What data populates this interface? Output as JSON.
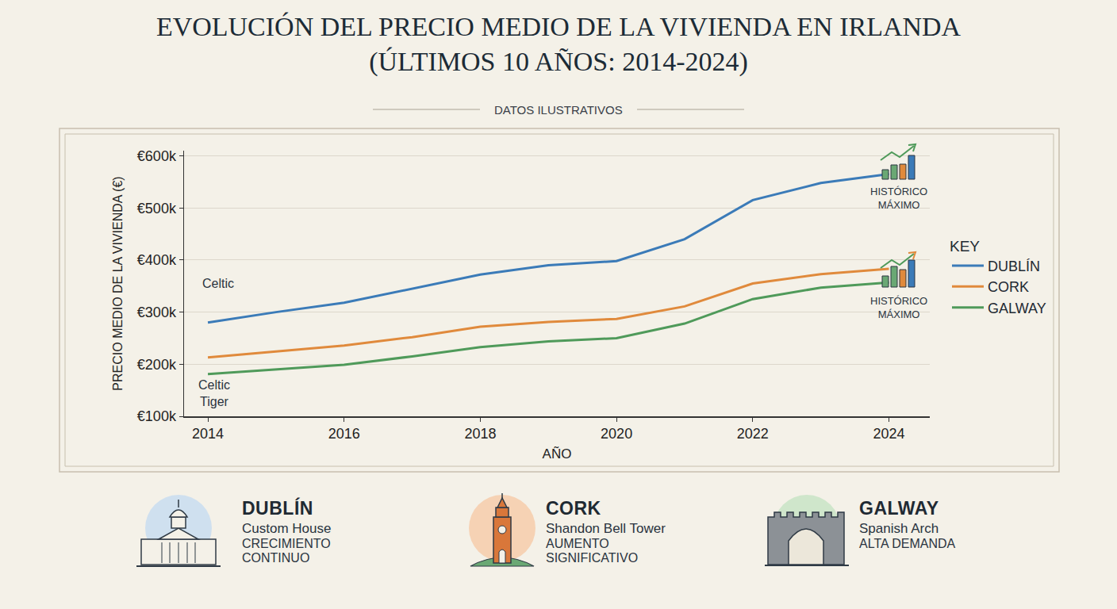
{
  "chart_data": {
    "type": "line",
    "title": "EVOLUCIÓN DEL PRECIO MEDIO DE LA VIVIENDA EN IRLANDA (ÚLTIMOS 10 AÑOS: 2014-2024)",
    "subtitle": "DATOS ILUSTRATIVOS",
    "x_label": "AÑO",
    "y_label": "PRECIO MEDIO DE LA VIVIENDA (€)",
    "legend_title": "KEY",
    "legend": "right",
    "grid": true,
    "x": [
      2014,
      2015,
      2016,
      2017,
      2018,
      2019,
      2020,
      2021,
      2022,
      2023,
      2024
    ],
    "xlim": [
      2013.65,
      2024.6
    ],
    "xticks": [
      2014,
      2016,
      2018,
      2020,
      2022,
      2024
    ],
    "ylim": [
      100000,
      610000
    ],
    "yticks": [
      {
        "value": 100000,
        "label": "€100k"
      },
      {
        "value": 200000,
        "label": "€200k"
      },
      {
        "value": 300000,
        "label": "€300k"
      },
      {
        "value": 400000,
        "label": "€400k"
      },
      {
        "value": 500000,
        "label": "€500k"
      },
      {
        "value": 600000,
        "label": "€600k"
      }
    ],
    "series": [
      {
        "name": "DUBLÍN",
        "color": "#3b7bb8",
        "values": [
          280000,
          300000,
          318000,
          345000,
          372000,
          390000,
          398000,
          440000,
          515000,
          548000,
          565000
        ]
      },
      {
        "name": "CORK",
        "color": "#e08a3c",
        "values": [
          213000,
          225000,
          236000,
          252000,
          272000,
          281000,
          287000,
          311000,
          355000,
          373000,
          383000
        ]
      },
      {
        "name": "GALWAY",
        "color": "#4f9a5a",
        "values": [
          181000,
          190000,
          199000,
          215000,
          233000,
          244000,
          250000,
          278000,
          325000,
          347000,
          357000
        ]
      }
    ],
    "annotations": [
      "Celtic",
      "Celtic Tiger",
      "HISTÓRICO MÁXIMO",
      "HISTÓRICO MÁXIMO"
    ]
  },
  "cards": [
    {
      "name": "DUBLÍN",
      "landmark": "Custom House",
      "note": "CRECIMIENTO CONTINUO"
    },
    {
      "name": "CORK",
      "landmark": "Shandon Bell Tower",
      "note": "AUMENTO SIGNIFICATIVO"
    },
    {
      "name": "GALWAY",
      "landmark": "Spanish Arch",
      "note": "ALTA DEMANDA"
    }
  ]
}
